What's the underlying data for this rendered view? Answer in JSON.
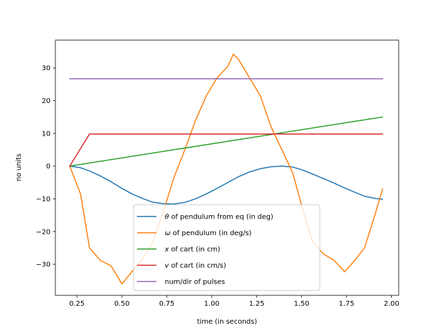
{
  "chart_data": {
    "type": "line",
    "title": "",
    "xlabel": "time (in seconds)",
    "ylabel": "no units",
    "xlim": [
      0.13,
      2.04
    ],
    "ylim": [
      -39.5,
      38.5
    ],
    "grid": false,
    "legend_position": "bottom-center",
    "x_ticks": [
      0.25,
      0.5,
      0.75,
      1.0,
      1.25,
      1.5,
      1.75,
      2.0
    ],
    "x_tick_labels": [
      "0.25",
      "0.50",
      "0.75",
      "1.00",
      "1.25",
      "1.50",
      "1.75",
      "2.00"
    ],
    "y_ticks": [
      -30,
      -20,
      -10,
      0,
      10,
      20,
      30
    ],
    "y_tick_labels": [
      "−30",
      "−20",
      "−10",
      "0",
      "10",
      "20",
      "30"
    ],
    "series": [
      {
        "name": "θ of pendulum from eq (in deg)",
        "legend_main": "θ",
        "legend_rest": " of pendulum from eq (in deg)",
        "color": "#1f77b4",
        "points": [
          [
            0.21,
            0.0
          ],
          [
            0.27,
            -0.5
          ],
          [
            0.32,
            -1.5
          ],
          [
            0.38,
            -3.0
          ],
          [
            0.44,
            -4.8
          ],
          [
            0.5,
            -6.8
          ],
          [
            0.56,
            -8.6
          ],
          [
            0.62,
            -10.0
          ],
          [
            0.67,
            -11.0
          ],
          [
            0.73,
            -11.5
          ],
          [
            0.79,
            -11.6
          ],
          [
            0.85,
            -11.1
          ],
          [
            0.91,
            -10.0
          ],
          [
            0.97,
            -8.5
          ],
          [
            1.03,
            -6.8
          ],
          [
            1.09,
            -5.0
          ],
          [
            1.15,
            -3.2
          ],
          [
            1.21,
            -1.8
          ],
          [
            1.27,
            -0.8
          ],
          [
            1.33,
            -0.2
          ],
          [
            1.39,
            0.0
          ],
          [
            1.45,
            -0.3
          ],
          [
            1.5,
            -1.1
          ],
          [
            1.56,
            -2.4
          ],
          [
            1.62,
            -3.8
          ],
          [
            1.68,
            -5.2
          ],
          [
            1.74,
            -6.7
          ],
          [
            1.8,
            -8.1
          ],
          [
            1.85,
            -9.2
          ],
          [
            1.91,
            -9.9
          ],
          [
            1.95,
            -10.1
          ]
        ]
      },
      {
        "name": "ω of pendulum (in deg/s)",
        "legend_main": "ω",
        "legend_rest": " of pendulum (in deg/s)",
        "color": "#ff7f0e",
        "points": [
          [
            0.21,
            0.0
          ],
          [
            0.27,
            -8.5
          ],
          [
            0.32,
            -25.0
          ],
          [
            0.38,
            -28.8
          ],
          [
            0.44,
            -30.5
          ],
          [
            0.5,
            -36.0
          ],
          [
            0.56,
            -32.0
          ],
          [
            0.62,
            -28.0
          ],
          [
            0.67,
            -23.5
          ],
          [
            0.73,
            -14.0
          ],
          [
            0.79,
            -3.5
          ],
          [
            0.85,
            5.0
          ],
          [
            0.91,
            14.0
          ],
          [
            0.97,
            21.5
          ],
          [
            1.03,
            27.0
          ],
          [
            1.09,
            30.5
          ],
          [
            1.12,
            34.2
          ],
          [
            1.15,
            32.5
          ],
          [
            1.21,
            27.0
          ],
          [
            1.27,
            21.5
          ],
          [
            1.33,
            12.0
          ],
          [
            1.39,
            5.0
          ],
          [
            1.45,
            -2.0
          ],
          [
            1.5,
            -12.0
          ],
          [
            1.56,
            -23.0
          ],
          [
            1.62,
            -26.8
          ],
          [
            1.68,
            -28.8
          ],
          [
            1.74,
            -32.3
          ],
          [
            1.8,
            -28.5
          ],
          [
            1.85,
            -25.0
          ],
          [
            1.91,
            -14.5
          ],
          [
            1.95,
            -7.0
          ]
        ]
      },
      {
        "name": "x of cart (in cm)",
        "legend_main": "x",
        "legend_rest": " of cart (in cm)",
        "color": "#2ca02c",
        "points": [
          [
            0.21,
            0.0
          ],
          [
            1.95,
            15.0
          ]
        ]
      },
      {
        "name": "v of cart  (in cm/s)",
        "legend_main": "v",
        "legend_rest": " of cart  (in cm/s)",
        "color": "#d62728",
        "points": [
          [
            0.21,
            0.0
          ],
          [
            0.32,
            9.8
          ],
          [
            1.95,
            9.8
          ]
        ]
      },
      {
        "name": "num/dir of pulses",
        "legend_main": "num/dir of pulses",
        "legend_rest": "",
        "color": "#9467bd",
        "points": [
          [
            0.21,
            26.7
          ],
          [
            1.95,
            26.7
          ]
        ]
      }
    ]
  }
}
